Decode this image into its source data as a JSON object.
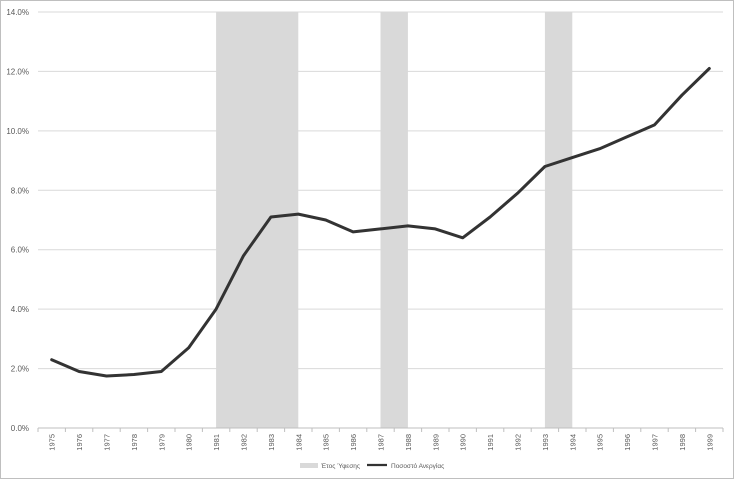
{
  "chart_data": {
    "type": "line",
    "title": "",
    "xlabel": "",
    "ylabel": "",
    "categories": [
      "1975",
      "1976",
      "1977",
      "1978",
      "1979",
      "1980",
      "1981",
      "1982",
      "1983",
      "1984",
      "1985",
      "1986",
      "1987",
      "1988",
      "1989",
      "1990",
      "1991",
      "1992",
      "1993",
      "1994",
      "1995",
      "1996",
      "1997",
      "1998",
      "1999"
    ],
    "series": [
      {
        "name": "Ποσοστό Ανεργίας",
        "color": "#333333",
        "values": [
          2.3,
          1.9,
          1.75,
          1.8,
          1.9,
          2.7,
          4.0,
          5.8,
          7.1,
          7.2,
          7.0,
          6.6,
          6.7,
          6.8,
          6.7,
          6.4,
          7.1,
          7.9,
          8.8,
          9.1,
          9.4,
          9.8,
          10.2,
          11.2,
          12.1
        ]
      }
    ],
    "recession": {
      "name": "Έτος Ύφεσης",
      "color": "#d9d9d9",
      "periods": [
        [
          "1981",
          "1983"
        ],
        [
          "1987",
          "1987"
        ],
        [
          "1993",
          "1993"
        ]
      ]
    },
    "ylim": [
      0,
      14
    ],
    "yticks": [
      0,
      2,
      4,
      6,
      8,
      10,
      12,
      14
    ],
    "ytick_labels": [
      "0.0%",
      "2.0%",
      "4.0%",
      "6.0%",
      "8.0%",
      "10.0%",
      "12.0%",
      "14.0%"
    ],
    "grid": true,
    "legend": "bottom-center"
  }
}
